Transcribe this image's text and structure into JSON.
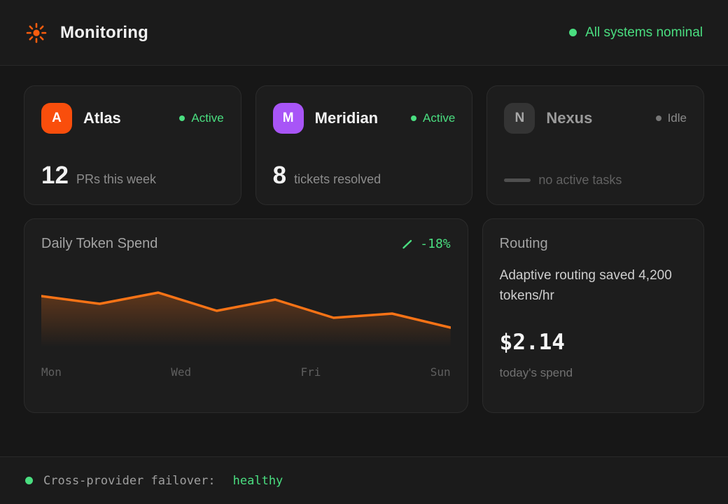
{
  "header": {
    "title": "Monitoring",
    "status": "All systems nominal"
  },
  "agents": [
    {
      "initial": "A",
      "name": "Atlas",
      "status": "Active",
      "stat_value": "12",
      "stat_label": "PRs this week"
    },
    {
      "initial": "M",
      "name": "Meridian",
      "status": "Active",
      "stat_value": "8",
      "stat_label": "tickets resolved"
    },
    {
      "initial": "N",
      "name": "Nexus",
      "status": "Idle",
      "stat_value": "",
      "stat_label": "no active tasks"
    }
  ],
  "chart_data": {
    "type": "area",
    "title": "Daily Token Spend",
    "delta_label": "-18%",
    "x_labels": [
      "Mon",
      "Wed",
      "Fri",
      "Sun"
    ],
    "values": [
      73,
      62,
      78,
      52,
      68,
      42,
      48,
      28
    ],
    "ylim": [
      0,
      100
    ],
    "xlabel": "",
    "ylabel": "",
    "grid": false,
    "legend": false,
    "line_color": "#f97316",
    "fill": "vertical gradient from rgba(249,115,22,0.3) under line to transparent"
  },
  "routing": {
    "title": "Routing",
    "description": "Adaptive routing saved 4,200 tokens/hr",
    "amount": "$2.14",
    "amount_label": "today's spend"
  },
  "footer": {
    "label": "Cross-provider failover:",
    "value": "healthy"
  },
  "colors": {
    "accent_orange": "#f94e0c",
    "chart_line_orange": "#f97316",
    "accent_green": "#4ade80",
    "accent_purple": "#a855f7",
    "idle_gray": "#8a8a8a",
    "card_bg": "#1d1d1d",
    "page_bg": "#171717"
  }
}
